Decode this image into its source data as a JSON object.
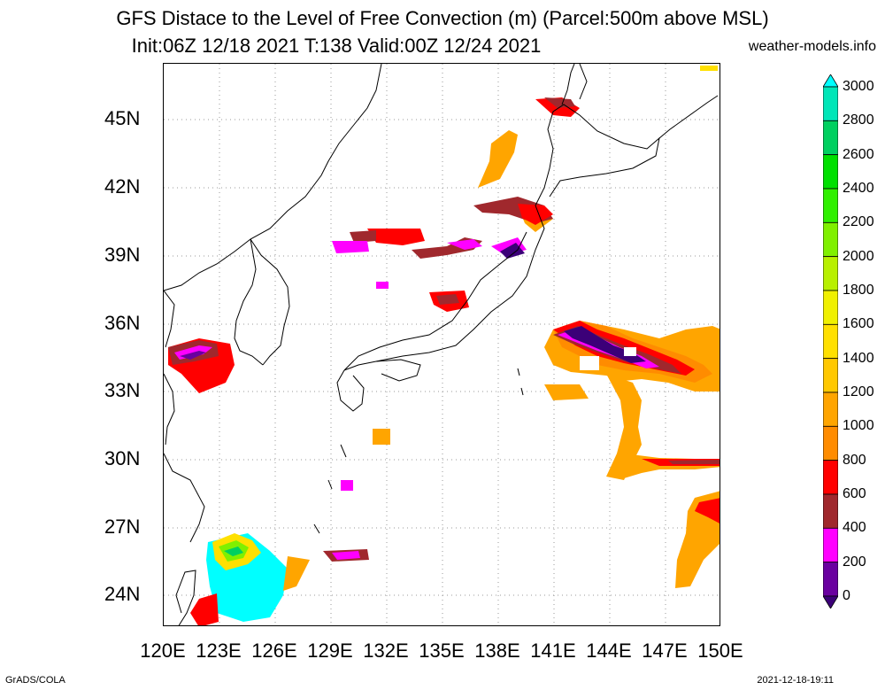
{
  "title_line1": "GFS Distace to the Level of Free Convection (m) (Parcel:500m above MSL)",
  "title_line2": "Init:06Z 12/18 2021 T:138 Valid:00Z 12/24 2021",
  "credit": "weather-models.info",
  "footer_left": "GrADS/COLA",
  "footer_right": "2021-12-18-19:11",
  "x_ticks": [
    "120E",
    "123E",
    "126E",
    "129E",
    "132E",
    "135E",
    "138E",
    "141E",
    "144E",
    "147E",
    "150E"
  ],
  "y_ticks": [
    "45N",
    "42N",
    "39N",
    "36N",
    "33N",
    "30N",
    "27N",
    "24N"
  ],
  "colorbar": {
    "labels": [
      "3000",
      "2800",
      "2600",
      "2400",
      "2200",
      "2000",
      "1800",
      "1600",
      "1400",
      "1200",
      "1000",
      "800",
      "600",
      "400",
      "200",
      "0"
    ],
    "colors": [
      "#00ffff",
      "#00e6b8",
      "#00d060",
      "#00e000",
      "#30f000",
      "#80f000",
      "#b8f000",
      "#f0f000",
      "#ffe000",
      "#ffc800",
      "#ffa500",
      "#ff8c00",
      "#ff0000",
      "#a0282d",
      "#ff00ff",
      "#6a00a0",
      "#3c0078"
    ]
  },
  "map": {
    "region": "Japan / East Asia",
    "lon_range": [
      120,
      150
    ],
    "lat_range": [
      22.5,
      47.5
    ],
    "grid": true
  }
}
